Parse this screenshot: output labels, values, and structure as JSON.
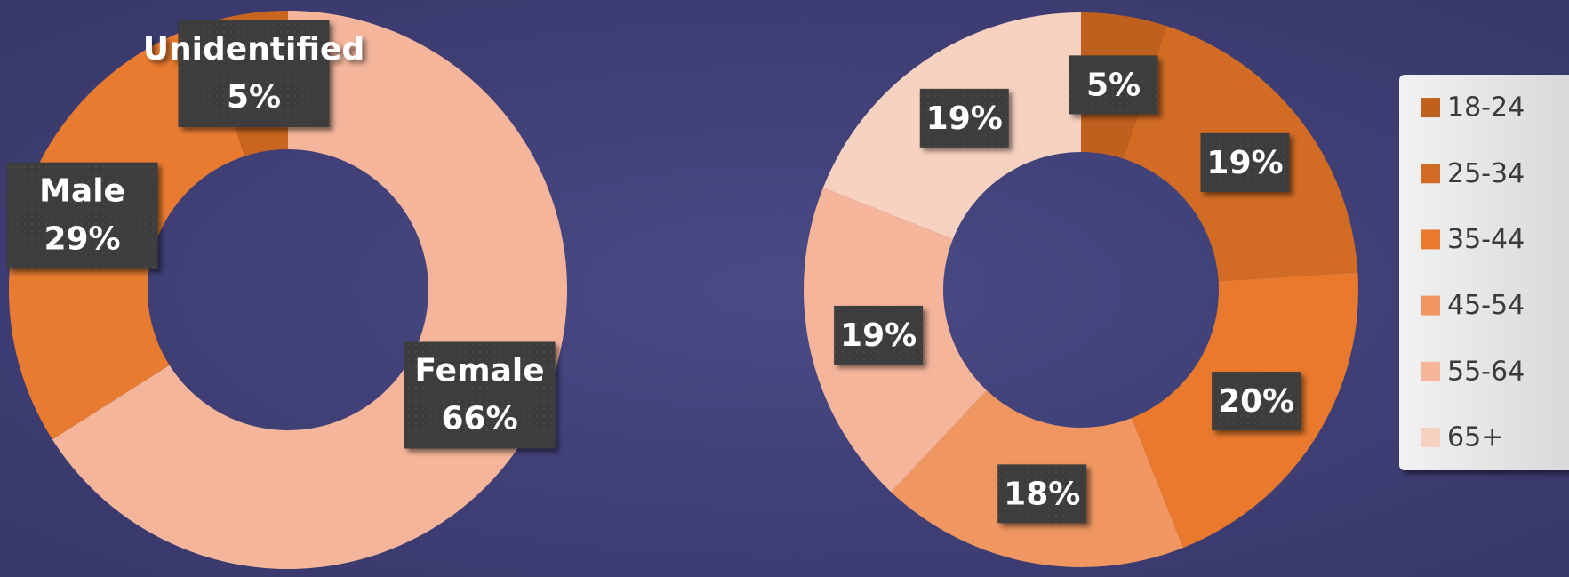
{
  "chart_data": [
    {
      "type": "donut",
      "categories": [
        "Female",
        "Male",
        "Unidentified"
      ],
      "values": [
        66,
        29,
        5
      ],
      "value_labels": [
        "66%",
        "29%",
        "5%"
      ],
      "colors": [
        "#f4b59b",
        "#e97b30",
        "#c9651f"
      ],
      "label_names": true,
      "legend": false
    },
    {
      "type": "donut",
      "categories": [
        "18-24",
        "25-34",
        "35-44",
        "45-54",
        "55-64",
        "65+"
      ],
      "values": [
        5,
        19,
        20,
        18,
        19,
        19
      ],
      "value_labels": [
        "5%",
        "19%",
        "20%",
        "18%",
        "19%",
        "19%"
      ],
      "colors": [
        "#c0601e",
        "#d26c25",
        "#e9792d",
        "#f09660",
        "#f4b59b",
        "#f8d2c0"
      ],
      "label_names": false,
      "legend": true
    }
  ]
}
